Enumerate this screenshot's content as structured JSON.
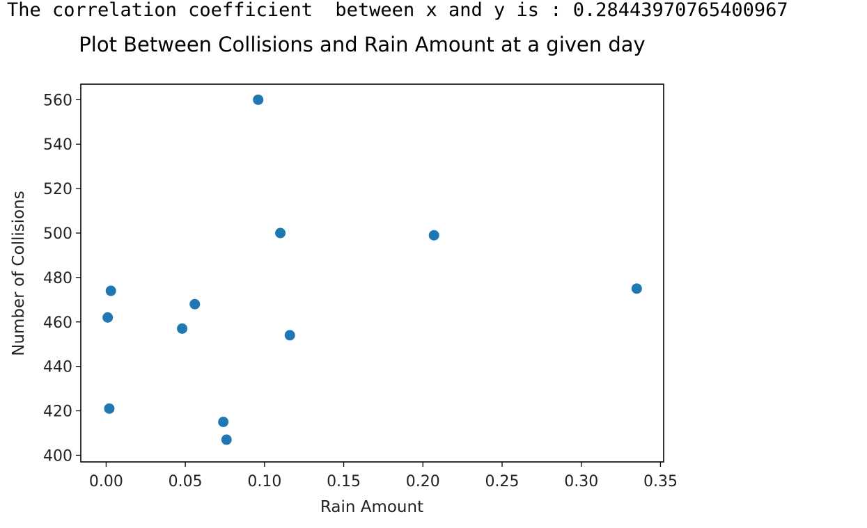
{
  "output": {
    "text": "The correlation coefficient  between x and y is : 0.28443970765400967"
  },
  "chart_data": {
    "type": "scatter",
    "title": "Plot Between Collisions and Rain Amount at a given day",
    "xlabel": "Rain Amount",
    "ylabel": "Number of Collisions",
    "xlim": [
      -0.016,
      0.352
    ],
    "ylim": [
      397,
      567
    ],
    "xticks": [
      0.0,
      0.05,
      0.1,
      0.15,
      0.2,
      0.25,
      0.3,
      0.35
    ],
    "xtick_labels": [
      "0.00",
      "0.05",
      "0.10",
      "0.15",
      "0.20",
      "0.25",
      "0.30",
      "0.35"
    ],
    "yticks": [
      400,
      420,
      440,
      460,
      480,
      500,
      520,
      540,
      560
    ],
    "ytick_labels": [
      "400",
      "420",
      "440",
      "460",
      "480",
      "500",
      "520",
      "540",
      "560"
    ],
    "grid": false,
    "marker_color": "#1f77b4",
    "points": [
      {
        "x": 0.096,
        "y": 560
      },
      {
        "x": 0.11,
        "y": 500
      },
      {
        "x": 0.207,
        "y": 499
      },
      {
        "x": 0.335,
        "y": 475
      },
      {
        "x": 0.003,
        "y": 474
      },
      {
        "x": 0.056,
        "y": 468
      },
      {
        "x": 0.001,
        "y": 462
      },
      {
        "x": 0.048,
        "y": 457
      },
      {
        "x": 0.116,
        "y": 454
      },
      {
        "x": 0.002,
        "y": 421
      },
      {
        "x": 0.074,
        "y": 415
      },
      {
        "x": 0.076,
        "y": 407
      }
    ]
  }
}
